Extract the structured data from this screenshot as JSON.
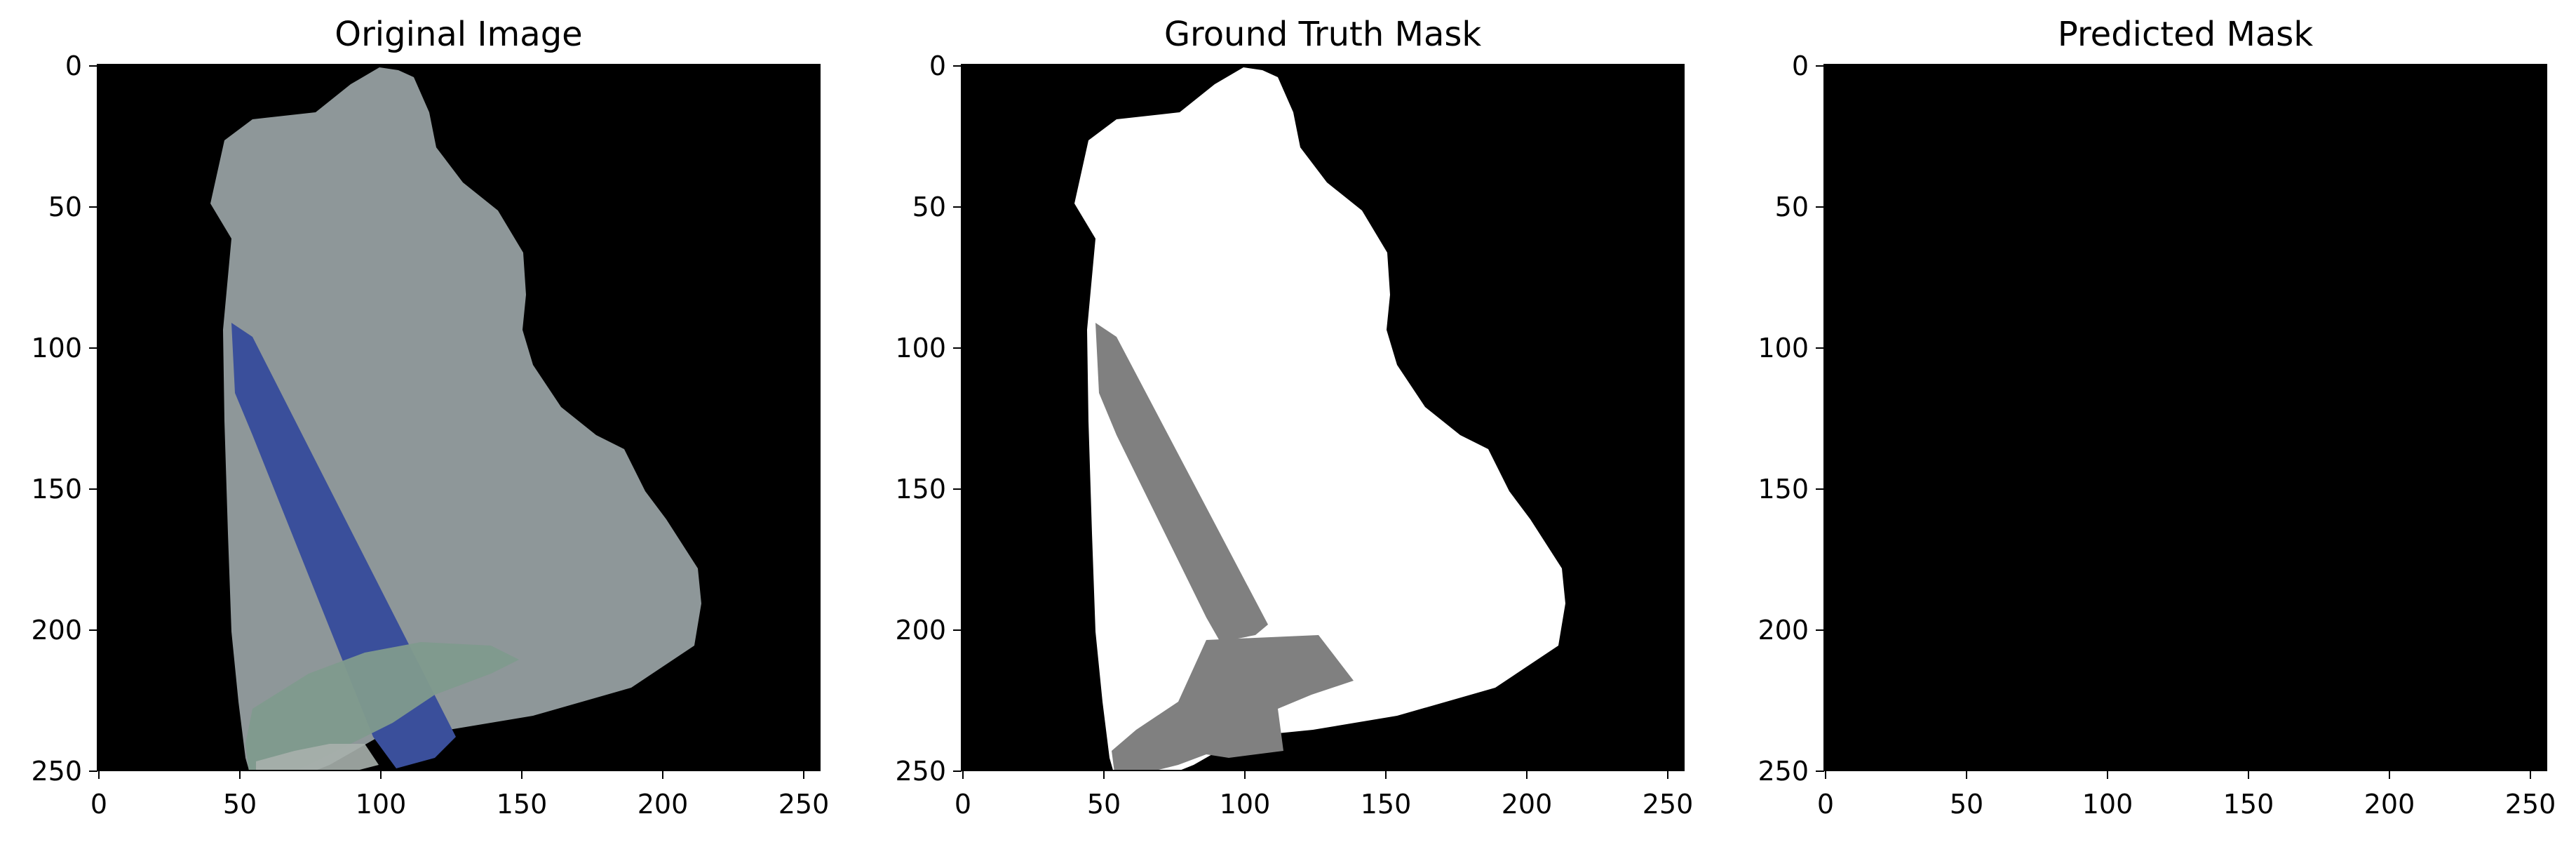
{
  "figure": {
    "panels": [
      {
        "id": "original",
        "title": "Original Image",
        "image": "rock-sample-photo",
        "x_ticks": [
          "0",
          "50",
          "100",
          "150",
          "200",
          "250"
        ],
        "y_ticks": [
          "0",
          "50",
          "100",
          "150",
          "200",
          "250"
        ]
      },
      {
        "id": "ground-truth",
        "title": "Ground Truth Mask",
        "image": "segmentation-mask",
        "x_ticks": [
          "0",
          "50",
          "100",
          "150",
          "200",
          "250"
        ],
        "y_ticks": [
          "0",
          "50",
          "100",
          "150",
          "200",
          "250"
        ]
      },
      {
        "id": "predicted",
        "title": "Predicted Mask",
        "image": "empty-black-mask",
        "x_ticks": [
          "0",
          "50",
          "100",
          "150",
          "200",
          "250"
        ],
        "y_ticks": [
          "0",
          "50",
          "100",
          "150",
          "200",
          "250"
        ]
      }
    ],
    "axis_range": [
      0,
      256
    ],
    "colors": {
      "background": "#000000",
      "rock": "#8e9799",
      "tape": "#3a4f9b",
      "mask_foreground": "#ffffff",
      "mask_secondary": "#808080"
    }
  }
}
